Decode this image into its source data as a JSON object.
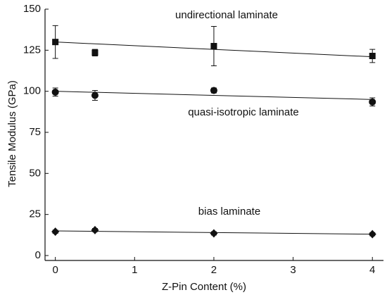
{
  "chart_data": {
    "type": "scatter",
    "x_label": "Z-Pin Content (%)",
    "y_label": "Tensile Modulus (GPa)",
    "xlim": [
      -0.13,
      4.14
    ],
    "xticks": [
      0,
      1,
      2,
      3,
      4
    ],
    "ylim": [
      -3,
      150
    ],
    "yticks": [
      0,
      25,
      50,
      75,
      100,
      125,
      150
    ],
    "color": "#111111",
    "series": [
      {
        "name": "undirectional laminate",
        "marker": "square",
        "x": [
          0,
          0.5,
          2,
          4
        ],
        "values": [
          130,
          123.5,
          127.5,
          121.5
        ],
        "errors": [
          10,
          2,
          12,
          4
        ],
        "fit_x": [
          0,
          4
        ],
        "fit_values": [
          130,
          121
        ]
      },
      {
        "name": "quasi-isotropic laminate",
        "marker": "circle",
        "x": [
          0,
          0.5,
          2,
          4
        ],
        "values": [
          99.5,
          97.5,
          100.5,
          93.5
        ],
        "errors": [
          2.5,
          3,
          1.5,
          2.5
        ],
        "fit_x": [
          0,
          4
        ],
        "fit_values": [
          100,
          95
        ]
      },
      {
        "name": "bias laminate",
        "marker": "diamond",
        "x": [
          0,
          0.5,
          2,
          4
        ],
        "values": [
          14.5,
          15.5,
          13.5,
          13
        ],
        "errors": [
          1,
          1,
          1,
          1
        ],
        "fit_x": [
          0,
          4
        ],
        "fit_values": [
          15,
          13
        ]
      }
    ]
  }
}
